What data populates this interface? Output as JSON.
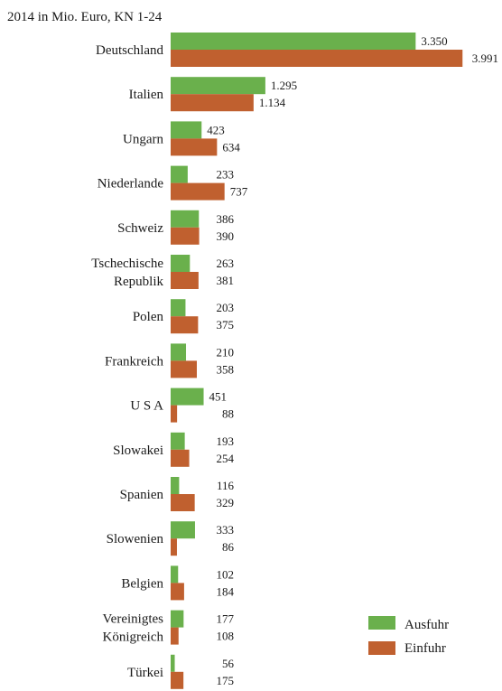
{
  "chart_data": {
    "type": "bar",
    "orientation": "horizontal",
    "title": "2014 in Mio. Euro, KN 1-24",
    "categories": [
      [
        "Deutschland"
      ],
      [
        "Italien"
      ],
      [
        "Ungarn"
      ],
      [
        "Niederlande"
      ],
      [
        "Schweiz"
      ],
      [
        "Tschechische",
        "Republik"
      ],
      [
        "Polen"
      ],
      [
        "Frankreich"
      ],
      [
        "U S A"
      ],
      [
        "Slowakei"
      ],
      [
        "Spanien"
      ],
      [
        "Slowenien"
      ],
      [
        "Belgien"
      ],
      [
        "Vereinigtes",
        "Königreich"
      ],
      [
        "Türkei"
      ]
    ],
    "series": [
      {
        "name": "Ausfuhr",
        "color": "#6ab04c",
        "values": [
          3350,
          1295,
          423,
          233,
          386,
          263,
          203,
          210,
          451,
          193,
          116,
          333,
          102,
          177,
          56
        ],
        "labels": [
          "3.350",
          "1.295",
          "423",
          "233",
          "386",
          "263",
          "203",
          "210",
          "451",
          "193",
          "116",
          "333",
          "102",
          "177",
          "56"
        ]
      },
      {
        "name": "Einfuhr",
        "color": "#c0602f",
        "values": [
          3991,
          1134,
          634,
          737,
          390,
          381,
          375,
          358,
          88,
          254,
          329,
          86,
          184,
          108,
          175
        ],
        "labels": [
          "3.991",
          "1.134",
          "634",
          "737",
          "390",
          "381",
          "375",
          "358",
          "88",
          "254",
          "329",
          "86",
          "184",
          "108",
          "175"
        ]
      }
    ],
    "xlim": [
      0,
      4200
    ],
    "grid": false,
    "legend": "bottom-right"
  }
}
